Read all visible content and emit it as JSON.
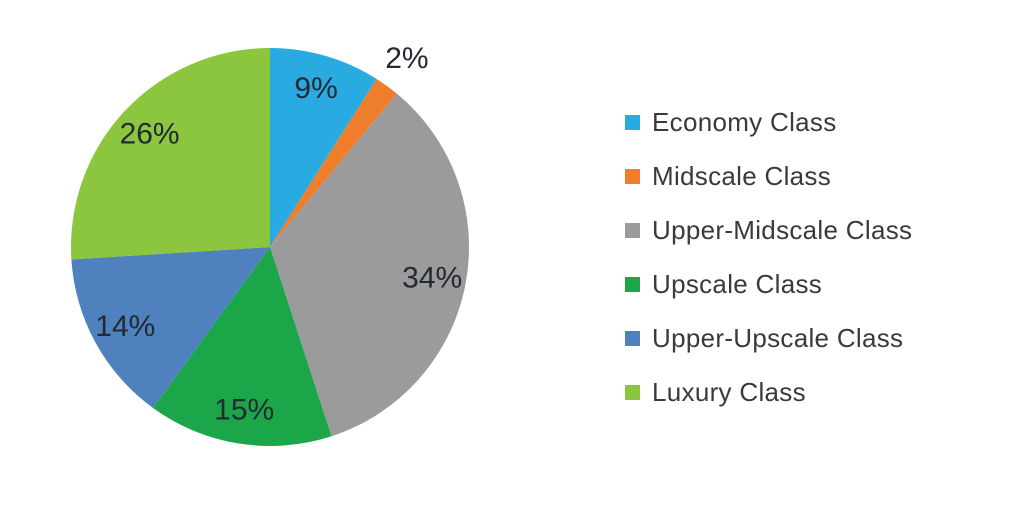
{
  "chart_data": {
    "type": "pie",
    "direction": "clockwise",
    "start_angle_deg": 0,
    "legend_position": "right",
    "background_color": "#ffffff",
    "label_color": "#242a31",
    "legend_text_color": "#3a3a3a",
    "slices": [
      {
        "label": "Economy Class",
        "value": 9,
        "display": "9%",
        "color": "#29abe2"
      },
      {
        "label": "Midscale Class",
        "value": 2,
        "display": "2%",
        "color": "#ee7d2c"
      },
      {
        "label": "Upper-Midscale Class",
        "value": 34,
        "display": "34%",
        "color": "#9b9b9b"
      },
      {
        "label": "Upscale Class",
        "value": 15,
        "display": "15%",
        "color": "#1ca64a"
      },
      {
        "label": "Upper-Upscale Class",
        "value": 14,
        "display": "14%",
        "color": "#4e81bd"
      },
      {
        "label": "Luxury Class",
        "value": 26,
        "display": "26%",
        "color": "#8cc63f"
      }
    ]
  }
}
